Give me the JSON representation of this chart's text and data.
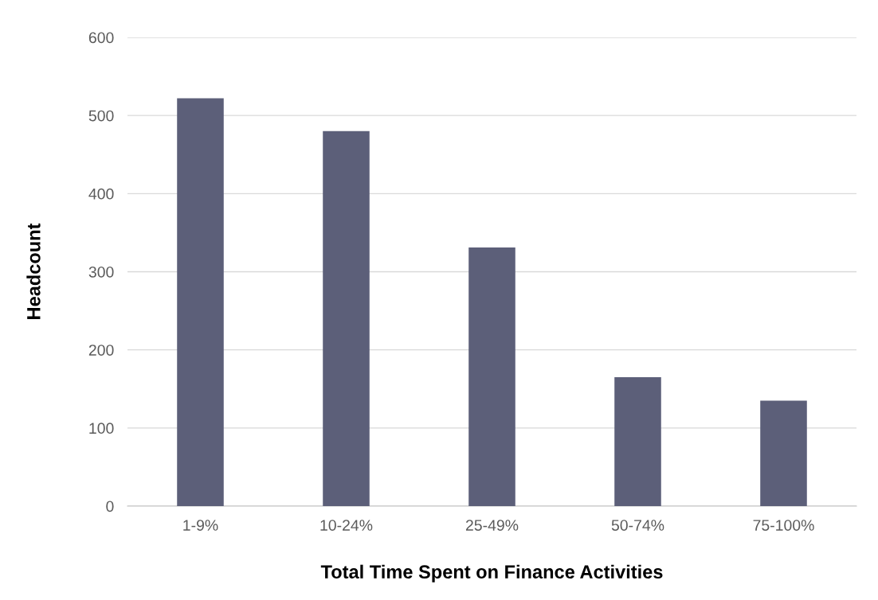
{
  "chart_data": {
    "type": "bar",
    "xlabel": "Total Time Spent on Finance Activities",
    "ylabel": "Headcount",
    "categories": [
      "1-9%",
      "10-24%",
      "25-49%",
      "50-74%",
      "75-100%"
    ],
    "values": [
      522,
      480,
      331,
      165,
      135
    ],
    "color": "#5c5f79",
    "ylim": [
      0,
      600
    ],
    "yticks": [
      0,
      100,
      200,
      300,
      400,
      500,
      600
    ],
    "grid": "y",
    "legend": false
  }
}
